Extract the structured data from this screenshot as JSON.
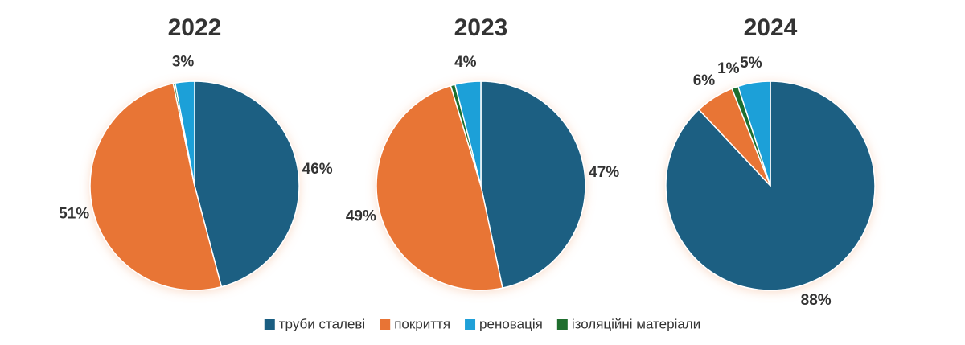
{
  "chart_data": [
    {
      "type": "pie",
      "title": "2022",
      "categories": [
        "труби сталеві",
        "покриття",
        "реновація",
        "ізоляційні матеріали"
      ],
      "values": [
        46,
        51,
        3,
        0.3
      ],
      "value_labels": [
        "46%",
        "51%",
        "3%",
        null
      ],
      "colors": [
        "#1a5e82",
        "#e87435",
        "#1fa0d8",
        "#1f6e2e"
      ]
    },
    {
      "type": "pie",
      "title": "2023",
      "categories": [
        "труби сталеві",
        "покриття",
        "реновація",
        "ізоляційні матеріали"
      ],
      "values": [
        47,
        49,
        4,
        0.7
      ],
      "value_labels": [
        "47%",
        "49%",
        "4%",
        null
      ],
      "colors": [
        "#1a5e82",
        "#e87435",
        "#1fa0d8",
        "#1f6e2e"
      ]
    },
    {
      "type": "pie",
      "title": "2024",
      "categories": [
        "труби сталеві",
        "покриття",
        "реновація",
        "ізоляційні матеріали"
      ],
      "values": [
        88,
        6,
        5,
        1
      ],
      "value_labels": [
        "88%",
        "6%",
        "5%",
        "1%"
      ],
      "colors": [
        "#1a5e82",
        "#e87435",
        "#1fa0d8",
        "#1f6e2e"
      ]
    }
  ]
}
